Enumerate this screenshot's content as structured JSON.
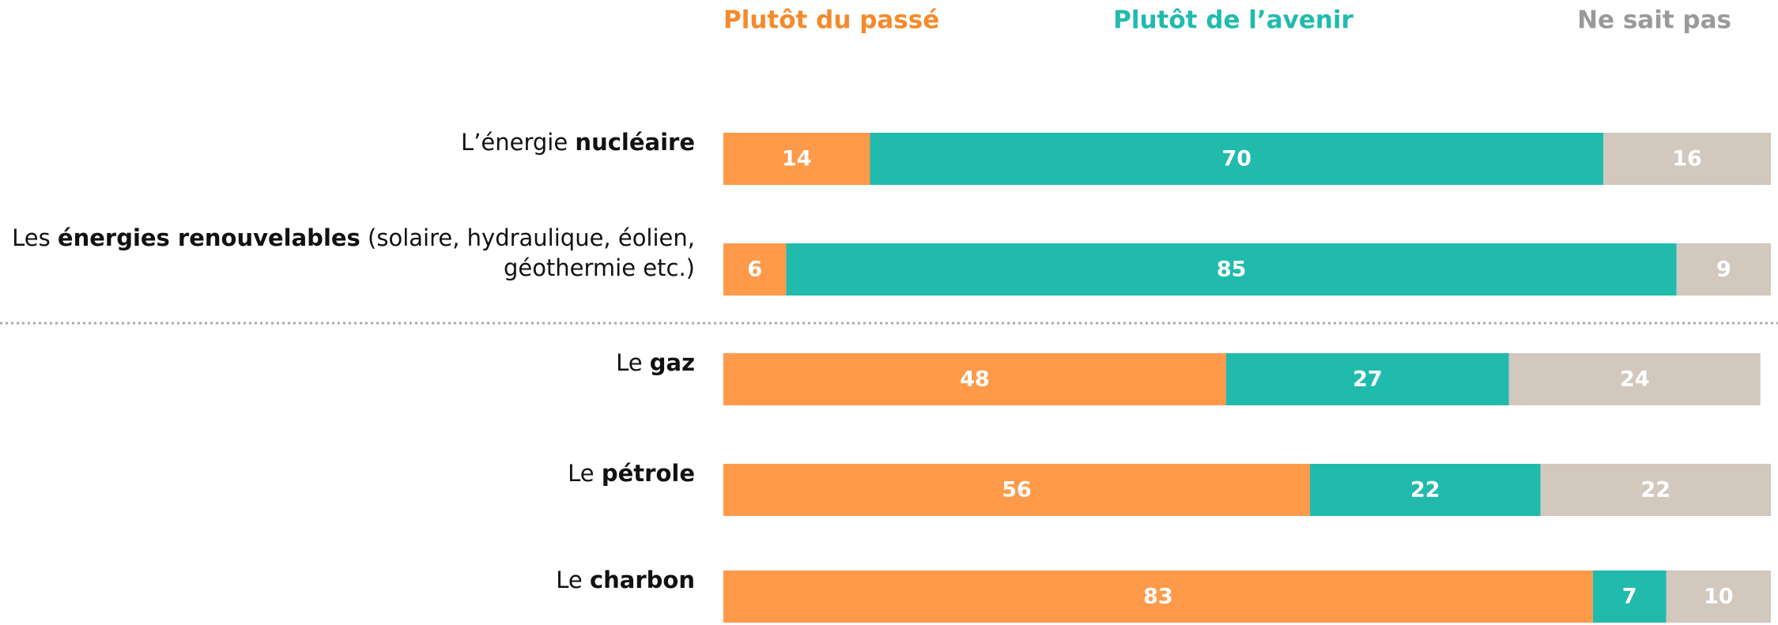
{
  "chart_data": {
    "type": "stacked-bar-horizontal",
    "categories": [
      [
        [
          {
            "text": "L’énergie ",
            "bold": false
          },
          {
            "text": "nucléaire",
            "bold": true
          }
        ]
      ],
      [
        [
          {
            "text": "Les ",
            "bold": false
          },
          {
            "text": "énergies renouvelables",
            "bold": true
          },
          {
            "text": " (solaire, hydraulique, éolien,",
            "bold": false
          }
        ],
        [
          {
            "text": "géothermie etc.)",
            "bold": false
          }
        ]
      ],
      [
        [
          {
            "text": "Le ",
            "bold": false
          },
          {
            "text": "gaz",
            "bold": true
          }
        ]
      ],
      [
        [
          {
            "text": "Le ",
            "bold": false
          },
          {
            "text": "pétrole",
            "bold": true
          }
        ]
      ],
      [
        [
          {
            "text": "Le ",
            "bold": false
          },
          {
            "text": "charbon",
            "bold": true
          }
        ]
      ]
    ],
    "series": [
      {
        "name": "Plutôt du passé",
        "color": "#FF9A4A",
        "text_color": "#F58A2A",
        "values": [
          14,
          6,
          48,
          56,
          83
        ]
      },
      {
        "name": "Plutôt de l’avenir",
        "color": "#20BBAD",
        "text_color": "#20BBAD",
        "values": [
          70,
          85,
          27,
          22,
          7
        ]
      },
      {
        "name": "Ne sait pas",
        "color": "#D3C8BE",
        "text_color": "#9A9A9A",
        "values": [
          16,
          9,
          24,
          22,
          10
        ]
      }
    ],
    "xlim": [
      0,
      100
    ]
  }
}
